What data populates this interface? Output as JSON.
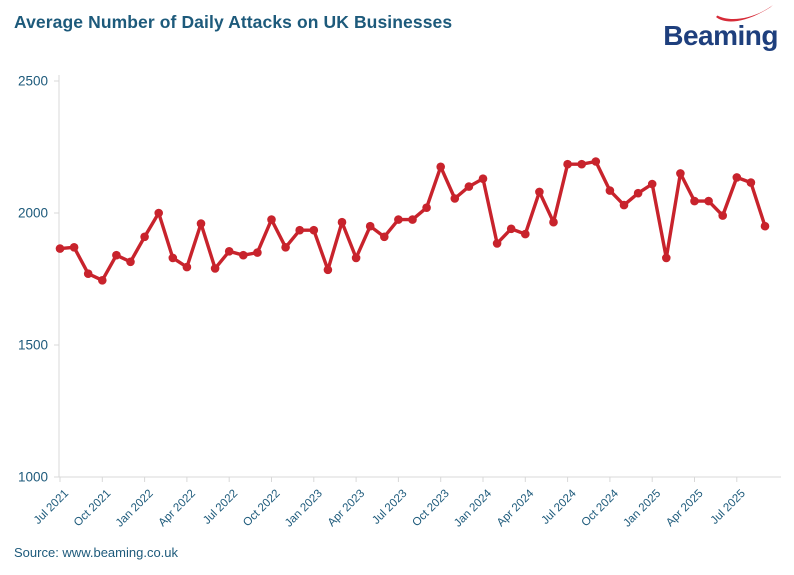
{
  "header": {
    "title": "Average Number of Daily Attacks on UK Businesses",
    "title_color": "#1d5a7b",
    "logo_text": "Beaming",
    "logo_text_color": "#1e3f7d",
    "logo_swoosh_color": "#d62b38"
  },
  "footer": {
    "source_text": "Source: www.beaming.co.uk"
  },
  "chart_data": {
    "type": "line",
    "title": "Average Number of Daily Attacks on UK Businesses",
    "xlabel": "",
    "ylabel": "",
    "ylim": [
      1000,
      2500
    ],
    "yticks": [
      1000,
      1500,
      2000,
      2500
    ],
    "xtick_every": 3,
    "grid": false,
    "legend": "none",
    "line_color": "#c8232c",
    "marker": "circle",
    "axis_color": "#d8d8d8",
    "tick_label_color": "#1d5a7b",
    "x": [
      "Jul 2021",
      "Aug 2021",
      "Sep 2021",
      "Oct 2021",
      "Nov 2021",
      "Dec 2021",
      "Jan 2022",
      "Feb 2022",
      "Mar 2022",
      "Apr 2022",
      "May 2022",
      "Jun 2022",
      "Jul 2022",
      "Aug 2022",
      "Sep 2022",
      "Oct 2022",
      "Nov 2022",
      "Dec 2022",
      "Jan 2023",
      "Feb 2023",
      "Mar 2023",
      "Apr 2023",
      "May 2023",
      "Jun 2023",
      "Jul 2023",
      "Aug 2023",
      "Sep 2023",
      "Oct 2023",
      "Nov 2023",
      "Dec 2023",
      "Jan 2024",
      "Feb 2024",
      "Mar 2024",
      "Apr 2024",
      "May 2024",
      "Jun 2024",
      "Jul 2024",
      "Aug 2024",
      "Sep 2024",
      "Oct 2024",
      "Nov 2024",
      "Dec 2024",
      "Jan 2025",
      "Feb 2025",
      "Mar 2025",
      "Apr 2025",
      "May 2025",
      "Jun 2025",
      "Jul 2025",
      "Aug 2025",
      "Sep 2025"
    ],
    "values": [
      1865,
      1870,
      1770,
      1745,
      1840,
      1815,
      1910,
      2000,
      1830,
      1795,
      1960,
      1790,
      1855,
      1840,
      1850,
      1975,
      1870,
      1935,
      1935,
      1785,
      1965,
      1830,
      1950,
      1910,
      1975,
      1975,
      2020,
      2175,
      2055,
      2100,
      2130,
      1885,
      1940,
      1920,
      2080,
      1965,
      2185,
      2185,
      2195,
      2085,
      2030,
      2075,
      2110,
      1830,
      2150,
      2045,
      2045,
      1990,
      2135,
      2115,
      1950
    ]
  }
}
